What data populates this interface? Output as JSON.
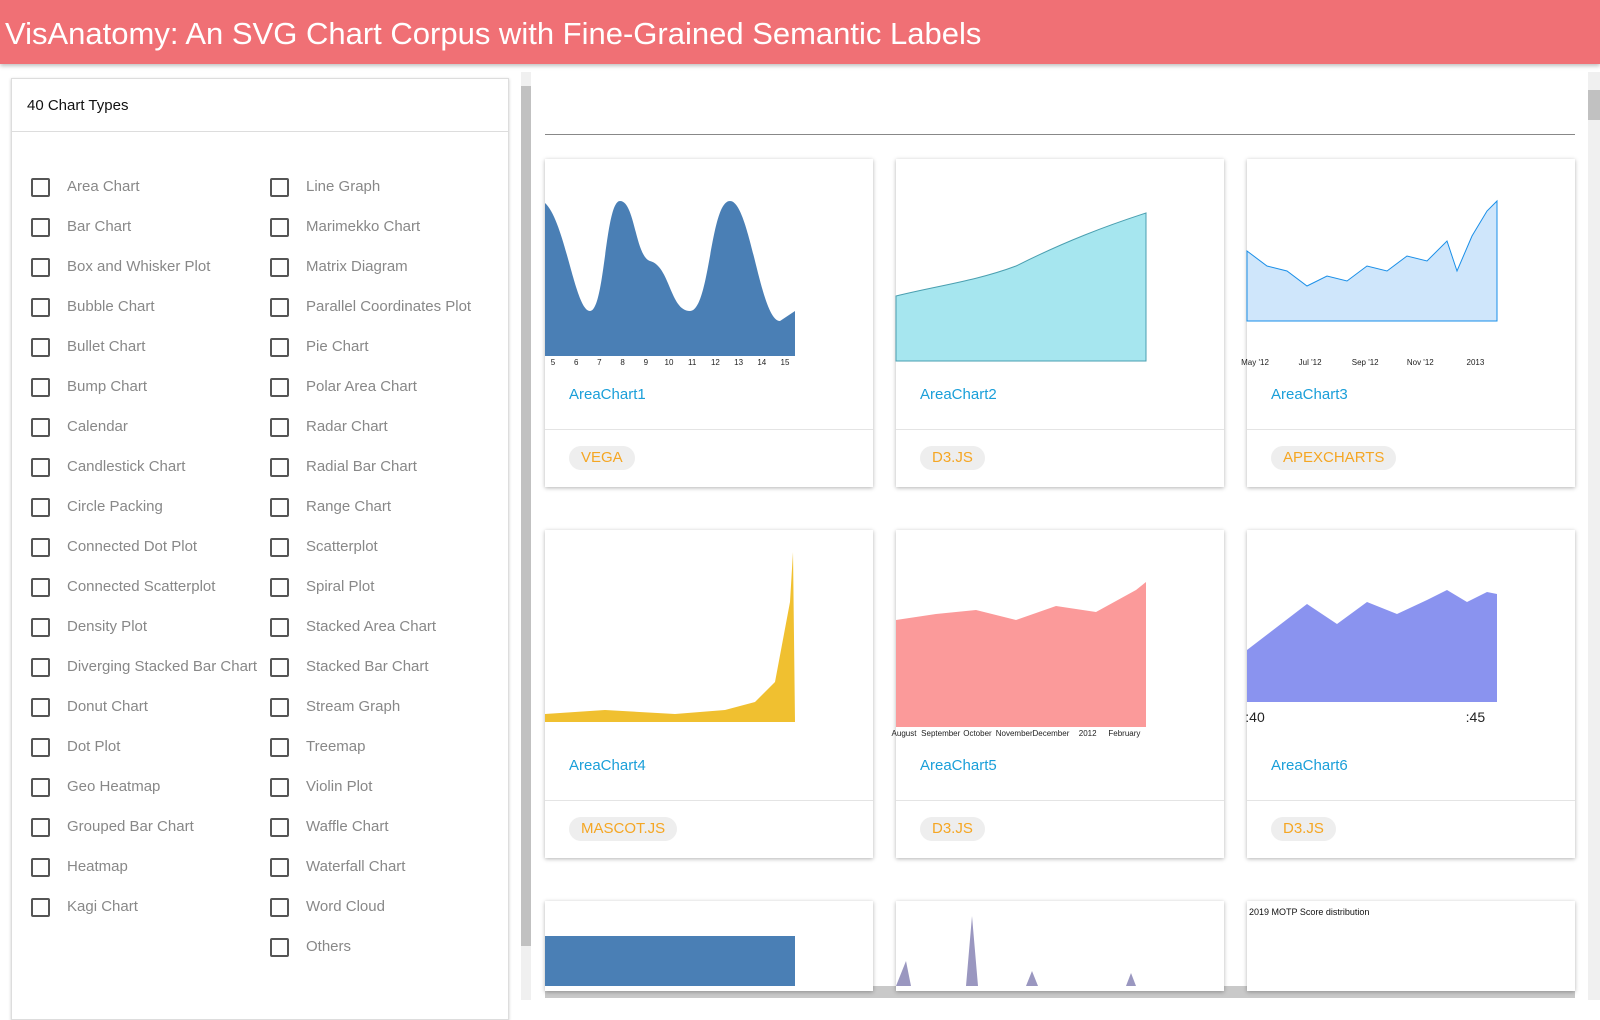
{
  "header": {
    "title": "VisAnatomy: An SVG Chart Corpus with Fine-Grained Semantic Labels"
  },
  "filter": {
    "title": "40 Chart Types",
    "options": [
      "Area Chart",
      "Bar Chart",
      "Box and Whisker Plot",
      "Bubble Chart",
      "Bullet Chart",
      "Bump Chart",
      "Calendar",
      "Candlestick Chart",
      "Circle Packing",
      "Connected Dot Plot",
      "Connected Scatterplot",
      "Density Plot",
      "Diverging Stacked Bar Chart",
      "Donut Chart",
      "Dot Plot",
      "Geo Heatmap",
      "Grouped Bar Chart",
      "Heatmap",
      "Kagi Chart",
      "Line Graph",
      "Marimekko Chart",
      "Matrix Diagram",
      "Parallel Coordinates Plot",
      "Pie Chart",
      "Polar Area Chart",
      "Radar Chart",
      "Radial Bar Chart",
      "Range Chart",
      "Scatterplot",
      "Spiral Plot",
      "Stacked Area Chart",
      "Stacked Bar Chart",
      "Stream Graph",
      "Treemap",
      "Violin Plot",
      "Waffle Chart",
      "Waterfall Chart",
      "Word Cloud",
      "Others"
    ]
  },
  "cards": [
    {
      "title": "AreaChart1",
      "library": "VEGA",
      "thumbnail_labels": [
        "5",
        "6",
        "7",
        "8",
        "9",
        "10",
        "11",
        "12",
        "13",
        "14",
        "15"
      ]
    },
    {
      "title": "AreaChart2",
      "library": "D3.JS"
    },
    {
      "title": "AreaChart3",
      "library": "APEXCHARTS",
      "thumbnail_labels": [
        "May '12",
        "Jul '12",
        "Sep '12",
        "Nov '12",
        "2013"
      ]
    },
    {
      "title": "AreaChart4",
      "library": "MASCOT.JS"
    },
    {
      "title": "AreaChart5",
      "library": "D3.JS",
      "thumbnail_labels": [
        "August",
        "September",
        "October",
        "November",
        "December",
        "2012",
        "February"
      ]
    },
    {
      "title": "AreaChart6",
      "library": "D3.JS",
      "thumbnail_labels": [
        ":40",
        ":45"
      ]
    }
  ],
  "partial_card_text": "2019 MOTP Score distribution"
}
